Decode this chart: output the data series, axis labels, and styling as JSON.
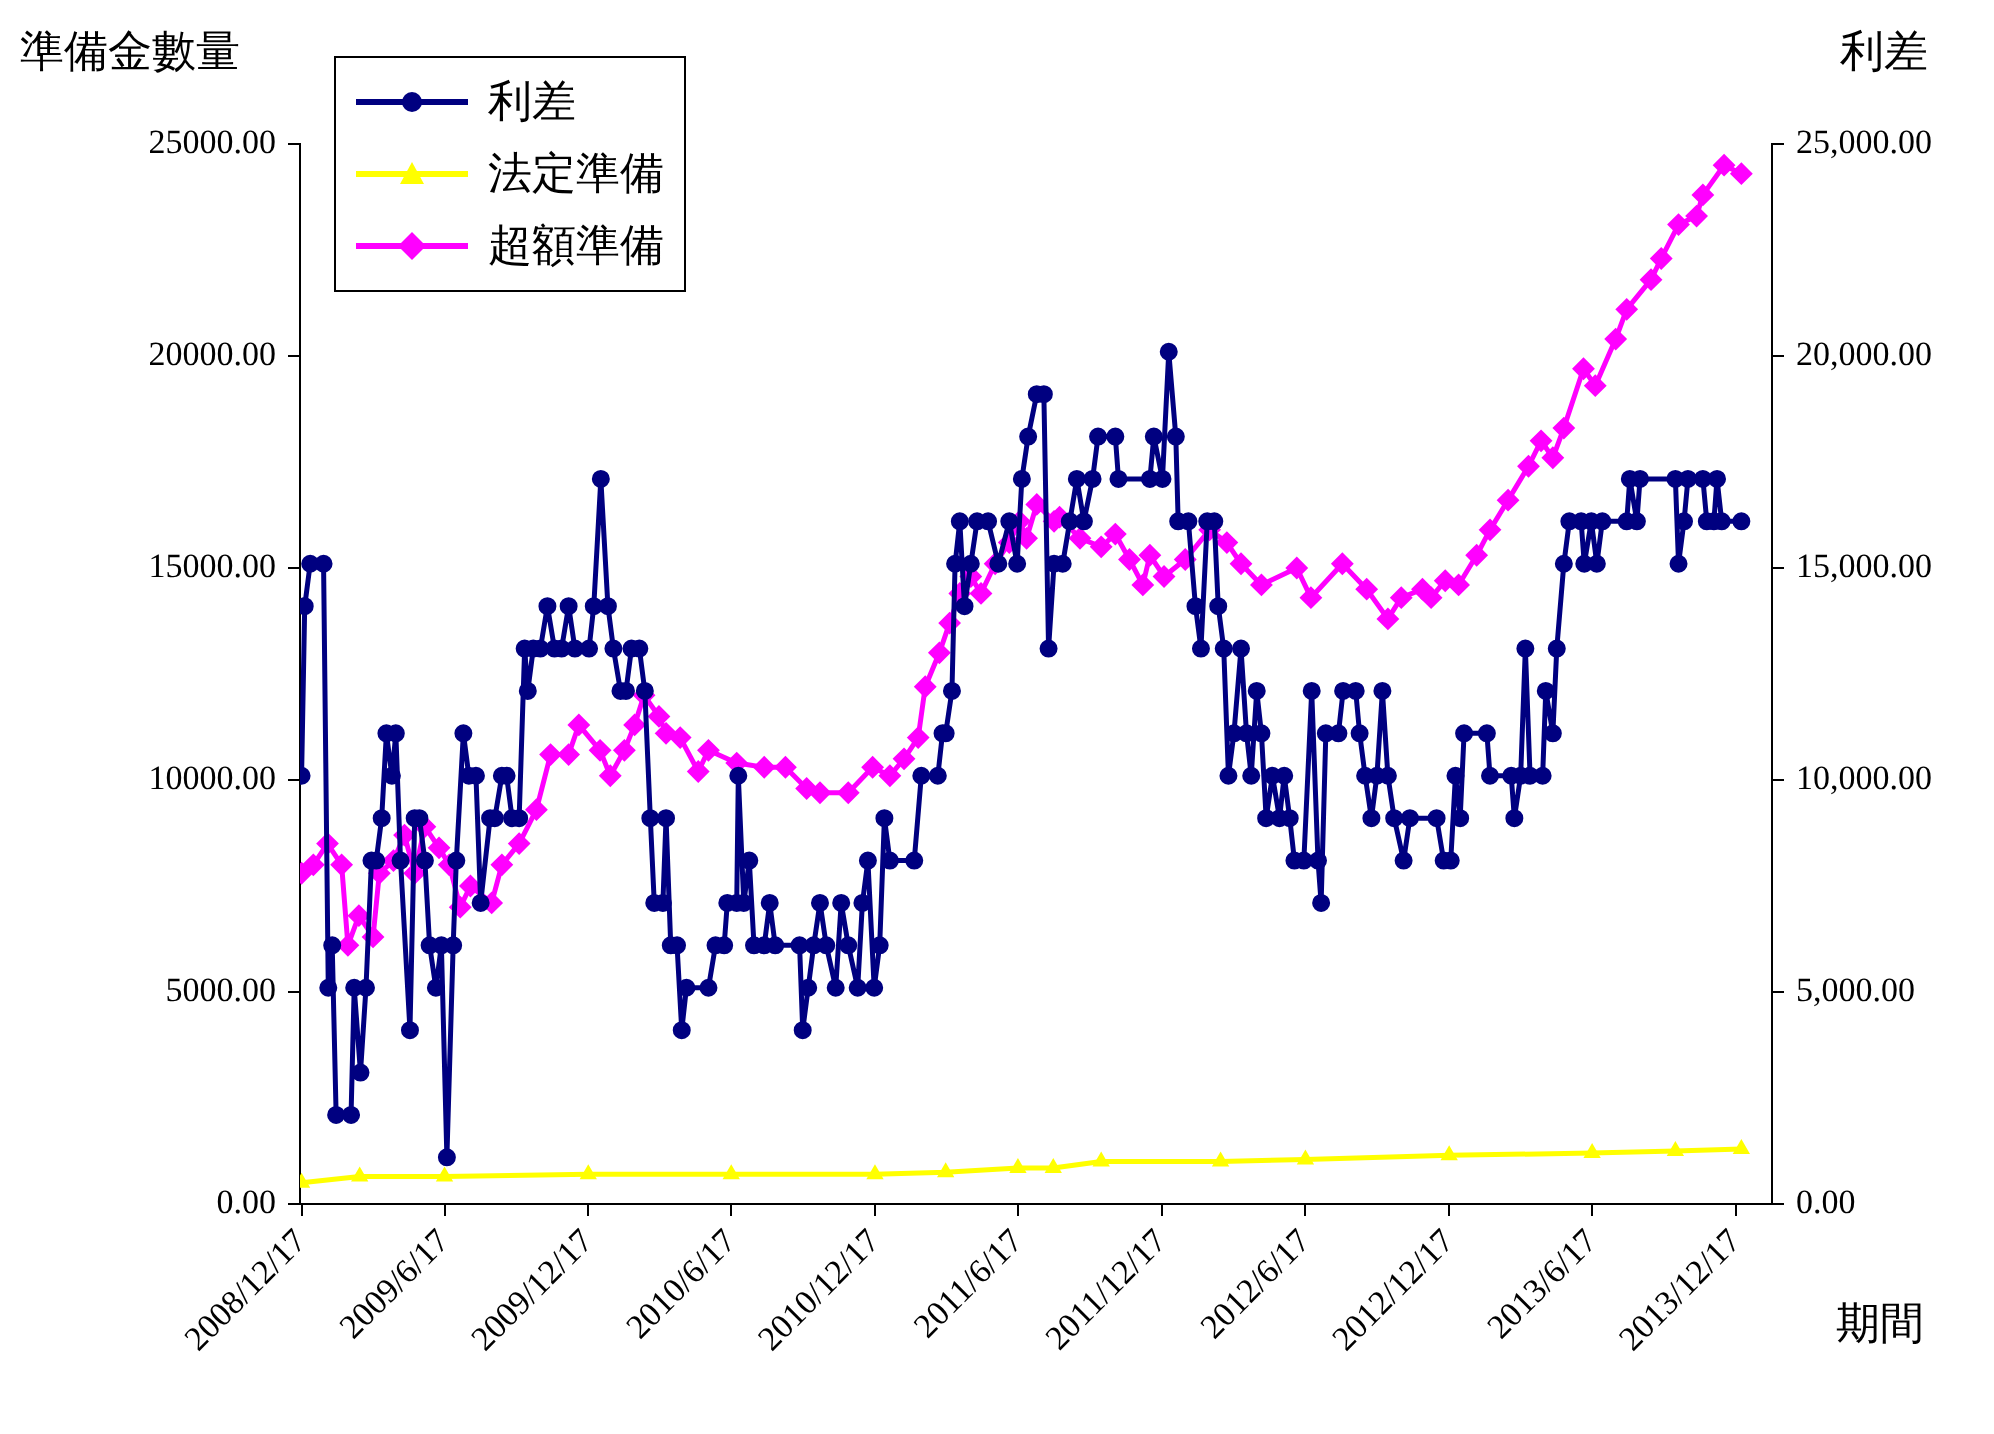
{
  "chart_data": {
    "type": "line",
    "xlabel": "期間",
    "ylabel": "準備金數量",
    "y2label": "利差",
    "xlim": [
      "2008-12-15",
      "2014-02-01"
    ],
    "xticks": [
      {
        "value": "2008-12-17",
        "label": "2008/12/17"
      },
      {
        "value": "2009-06-17",
        "label": "2009/6/17"
      },
      {
        "value": "2009-12-17",
        "label": "2009/12/17"
      },
      {
        "value": "2010-06-17",
        "label": "2010/6/17"
      },
      {
        "value": "2010-12-17",
        "label": "2010/12/17"
      },
      {
        "value": "2011-06-17",
        "label": "2011/6/17"
      },
      {
        "value": "2011-12-17",
        "label": "2011/12/17"
      },
      {
        "value": "2012-06-17",
        "label": "2012/6/17"
      },
      {
        "value": "2012-12-17",
        "label": "2012/12/17"
      },
      {
        "value": "2013-06-17",
        "label": "2013/6/17"
      },
      {
        "value": "2013-12-17",
        "label": "2013/12/17"
      }
    ],
    "ylim": [
      0,
      25000
    ],
    "yticks": [
      {
        "value": 0,
        "label": "0.00"
      },
      {
        "value": 5000,
        "label": "5000.00"
      },
      {
        "value": 10000,
        "label": "10000.00"
      },
      {
        "value": 15000,
        "label": "15000.00"
      },
      {
        "value": 20000,
        "label": "20000.00"
      },
      {
        "value": 25000,
        "label": "25000.00"
      }
    ],
    "y2lim": [
      0,
      25000
    ],
    "y2ticks": [
      {
        "value": 0,
        "label": "0.00"
      },
      {
        "value": 5000,
        "label": "5,000.00"
      },
      {
        "value": 10000,
        "label": "10,000.00"
      },
      {
        "value": 15000,
        "label": "15,000.00"
      },
      {
        "value": 20000,
        "label": "20,000.00"
      },
      {
        "value": 25000,
        "label": "25,000.00"
      }
    ],
    "grid": false,
    "legend": "top left",
    "line_style": "solid",
    "series": [
      {
        "name": "利差",
        "color": "#000080",
        "axis": "y2",
        "marker": "circle",
        "x": [
          "2008-12-17",
          "2008-12-21",
          "2008-12-28",
          "2009-01-14",
          "2009-01-20",
          "2009-01-25",
          "2009-01-30",
          "2009-02-18",
          "2009-02-22",
          "2009-03-02",
          "2009-03-09",
          "2009-03-16",
          "2009-03-22",
          "2009-03-29",
          "2009-04-04",
          "2009-04-11",
          "2009-04-16",
          "2009-04-22",
          "2009-05-04",
          "2009-05-10",
          "2009-05-16",
          "2009-05-23",
          "2009-05-29",
          "2009-06-06",
          "2009-06-13",
          "2009-06-20",
          "2009-06-28",
          "2009-07-02",
          "2009-07-11",
          "2009-07-18",
          "2009-07-27",
          "2009-08-02",
          "2009-08-14",
          "2009-08-20",
          "2009-08-29",
          "2009-09-04",
          "2009-09-11",
          "2009-09-20",
          "2009-09-27",
          "2009-10-01",
          "2009-10-08",
          "2009-10-17",
          "2009-10-26",
          "2009-11-04",
          "2009-11-13",
          "2009-11-22",
          "2009-11-30",
          "2009-12-18",
          "2009-12-24",
          "2010-01-02",
          "2010-01-11",
          "2010-01-18",
          "2010-01-27",
          "2010-02-03",
          "2010-02-10",
          "2010-02-20",
          "2010-02-27",
          "2010-03-06",
          "2010-03-11",
          "2010-03-22",
          "2010-03-26",
          "2010-04-01",
          "2010-04-09",
          "2010-04-15",
          "2010-04-21",
          "2010-05-19",
          "2010-05-28",
          "2010-06-08",
          "2010-06-12",
          "2010-06-24",
          "2010-06-26",
          "2010-07-03",
          "2010-07-10",
          "2010-07-16",
          "2010-07-29",
          "2010-08-05",
          "2010-08-12",
          "2010-09-12",
          "2010-09-16",
          "2010-09-23",
          "2010-09-30",
          "2010-10-08",
          "2010-10-16",
          "2010-10-28",
          "2010-11-04",
          "2010-11-13",
          "2010-11-25",
          "2010-12-01",
          "2010-12-08",
          "2010-12-16",
          "2010-12-23",
          "2010-12-29",
          "2011-01-05",
          "2011-02-05",
          "2011-02-14",
          "2011-03-07",
          "2011-03-13",
          "2011-03-17",
          "2011-03-25",
          "2011-03-29",
          "2011-04-04",
          "2011-04-10",
          "2011-04-18",
          "2011-04-26",
          "2011-05-10",
          "2011-05-23",
          "2011-06-06",
          "2011-06-16",
          "2011-06-22",
          "2011-06-30",
          "2011-07-11",
          "2011-07-20",
          "2011-07-26",
          "2011-08-02",
          "2011-08-13",
          "2011-08-22",
          "2011-08-31",
          "2011-09-09",
          "2011-09-20",
          "2011-09-27",
          "2011-10-19",
          "2011-10-23",
          "2011-12-02",
          "2011-12-07",
          "2011-12-18",
          "2011-12-26",
          "2012-01-04",
          "2012-01-07",
          "2012-01-20",
          "2012-01-29",
          "2012-02-05",
          "2012-02-13",
          "2012-02-22",
          "2012-02-27",
          "2012-03-05",
          "2012-03-11",
          "2012-03-18",
          "2012-03-27",
          "2012-04-03",
          "2012-04-09",
          "2012-04-16",
          "2012-04-22",
          "2012-04-28",
          "2012-05-06",
          "2012-05-15",
          "2012-05-21",
          "2012-05-28",
          "2012-06-03",
          "2012-06-15",
          "2012-06-25",
          "2012-07-03",
          "2012-07-07",
          "2012-07-13",
          "2012-07-29",
          "2012-08-04",
          "2012-08-20",
          "2012-08-25",
          "2012-09-01",
          "2012-09-09",
          "2012-09-16",
          "2012-09-23",
          "2012-09-30",
          "2012-10-08",
          "2012-10-20",
          "2012-10-28",
          "2012-12-01",
          "2012-12-10",
          "2012-12-19",
          "2012-12-25",
          "2012-12-31",
          "2013-01-05",
          "2013-02-03",
          "2013-02-07",
          "2013-03-06",
          "2013-03-10",
          "2013-03-18",
          "2013-03-24",
          "2013-03-30",
          "2013-04-15",
          "2013-04-19",
          "2013-04-28",
          "2013-05-03",
          "2013-05-12",
          "2013-05-19",
          "2013-06-03",
          "2013-06-07",
          "2013-06-16",
          "2013-06-23",
          "2013-06-30",
          "2013-07-31",
          "2013-08-04",
          "2013-08-13",
          "2013-08-17",
          "2013-10-01",
          "2013-10-05",
          "2013-10-12",
          "2013-10-17",
          "2013-11-05",
          "2013-11-10",
          "2013-11-19",
          "2013-11-23",
          "2013-11-29",
          "2013-12-24"
        ],
        "values": [
          10100,
          14100,
          15100,
          15100,
          5100,
          6100,
          2100,
          2100,
          5100,
          3100,
          5100,
          8100,
          8100,
          9100,
          11100,
          10100,
          11100,
          8100,
          4100,
          9100,
          9100,
          8100,
          6100,
          5100,
          6100,
          1100,
          6100,
          8100,
          11100,
          10100,
          10100,
          7100,
          9100,
          9100,
          10100,
          10100,
          9100,
          9100,
          13100,
          12100,
          13100,
          13100,
          14100,
          13100,
          13100,
          14100,
          13100,
          13100,
          14100,
          17100,
          14100,
          13100,
          12100,
          12100,
          13100,
          13100,
          12100,
          9100,
          7100,
          7100,
          9100,
          6100,
          6100,
          4100,
          5100,
          5100,
          6100,
          6100,
          7100,
          7100,
          10100,
          7100,
          8100,
          6100,
          6100,
          7100,
          6100,
          6100,
          4100,
          5100,
          6100,
          7100,
          6100,
          5100,
          7100,
          6100,
          5100,
          7100,
          8100,
          5100,
          6100,
          9100,
          8100,
          8100,
          10100,
          10100,
          11100,
          11100,
          12100,
          15100,
          16100,
          14100,
          15100,
          16100,
          16100,
          15100,
          16100,
          15100,
          17100,
          18100,
          19100,
          19100,
          13100,
          15100,
          15100,
          16100,
          17100,
          16100,
          17100,
          18100,
          18100,
          17100,
          17100,
          18100,
          17100,
          20100,
          18100,
          16100,
          16100,
          14100,
          13100,
          16100,
          16100,
          14100,
          13100,
          10100,
          11100,
          13100,
          11100,
          10100,
          12100,
          11100,
          9100,
          10100,
          9100,
          10100,
          9100,
          8100,
          8100,
          12100,
          8100,
          7100,
          11100,
          11100,
          12100,
          12100,
          11100,
          10100,
          9100,
          10100,
          12100,
          10100,
          9100,
          8100,
          9100,
          9100,
          8100,
          8100,
          10100,
          9100,
          11100,
          11100,
          10100,
          10100,
          9100,
          10100,
          13100,
          10100,
          10100,
          12100,
          11100,
          13100,
          15100,
          16100,
          16100,
          15100,
          16100,
          15100,
          16100,
          16100,
          17100,
          16100,
          17100,
          17100,
          15100,
          16100,
          17100,
          17100,
          16100,
          16100,
          17100,
          16100,
          16100
        ]
      },
      {
        "name": "法定準備",
        "color": "#ffff00",
        "marker": "triangle",
        "x": [
          "2008-12-17",
          "2009-03-01",
          "2009-06-17",
          "2009-12-17",
          "2010-06-17",
          "2010-12-17",
          "2011-03-17",
          "2011-06-17",
          "2011-08-01",
          "2011-10-01",
          "2012-03-01",
          "2012-06-17",
          "2012-12-17",
          "2013-06-17",
          "2013-10-01",
          "2013-12-24"
        ],
        "values": [
          500,
          650,
          650,
          700,
          700,
          700,
          750,
          850,
          850,
          1000,
          1000,
          1050,
          1150,
          1200,
          1250,
          1300
        ]
      },
      {
        "name": "超額準備",
        "color": "#ff00ff",
        "marker": "diamond",
        "x": [
          "2008-12-17",
          "2009-01-01",
          "2009-01-19",
          "2009-02-06",
          "2009-02-14",
          "2009-02-28",
          "2009-03-18",
          "2009-03-26",
          "2009-04-13",
          "2009-04-27",
          "2009-05-10",
          "2009-05-23",
          "2009-06-10",
          "2009-06-23",
          "2009-07-07",
          "2009-07-20",
          "2009-08-16",
          "2009-08-29",
          "2009-09-20",
          "2009-10-12",
          "2009-10-30",
          "2009-11-22",
          "2009-12-05",
          "2010-01-01",
          "2010-01-14",
          "2010-02-01",
          "2010-02-14",
          "2010-02-26",
          "2010-03-17",
          "2010-03-26",
          "2010-04-13",
          "2010-05-06",
          "2010-05-19",
          "2010-06-24",
          "2010-07-29",
          "2010-08-25",
          "2010-09-21",
          "2010-10-08",
          "2010-11-13",
          "2010-12-14",
          "2011-01-05",
          "2011-01-23",
          "2011-02-10",
          "2011-02-19",
          "2011-03-09",
          "2011-03-22",
          "2011-04-04",
          "2011-04-18",
          "2011-05-01",
          "2011-05-19",
          "2011-06-06",
          "2011-06-19",
          "2011-06-28",
          "2011-07-11",
          "2011-08-02",
          "2011-08-09",
          "2011-09-04",
          "2011-10-01",
          "2011-10-19",
          "2011-11-06",
          "2011-11-23",
          "2011-12-02",
          "2011-12-20",
          "2012-01-16",
          "2012-02-16",
          "2012-03-09",
          "2012-03-27",
          "2012-04-22",
          "2012-06-06",
          "2012-06-24",
          "2012-08-03",
          "2012-09-03",
          "2012-09-30",
          "2012-10-17",
          "2012-11-13",
          "2012-11-24",
          "2012-12-12",
          "2012-12-29",
          "2013-01-21",
          "2013-02-07",
          "2013-03-02",
          "2013-03-28",
          "2013-04-13",
          "2013-04-28",
          "2013-05-12",
          "2013-06-06",
          "2013-06-21",
          "2013-07-17",
          "2013-07-31",
          "2013-08-31",
          "2013-09-13",
          "2013-10-05",
          "2013-10-28",
          "2013-11-05",
          "2013-12-02",
          "2013-12-24"
        ],
        "values": [
          7800,
          8000,
          8500,
          8000,
          6100,
          6800,
          6300,
          7800,
          8100,
          8700,
          7800,
          8900,
          8400,
          8000,
          7000,
          7500,
          7100,
          8000,
          8500,
          9300,
          10600,
          10600,
          11300,
          10700,
          10100,
          10700,
          11300,
          12000,
          11500,
          11100,
          11000,
          10200,
          10700,
          10400,
          10300,
          10300,
          9800,
          9700,
          9700,
          10300,
          10100,
          10500,
          11000,
          12200,
          13000,
          13700,
          14400,
          14800,
          14400,
          15100,
          15600,
          16100,
          15700,
          16500,
          16100,
          16200,
          15700,
          15500,
          15800,
          15200,
          14600,
          15300,
          14800,
          15200,
          15900,
          15600,
          15100,
          14600,
          15000,
          14300,
          15100,
          14500,
          13800,
          14300,
          14500,
          14300,
          14700,
          14600,
          15300,
          15900,
          16600,
          17400,
          18000,
          17600,
          18300,
          19700,
          19300,
          20400,
          21100,
          21800,
          22300,
          23100,
          23300,
          23800,
          24500,
          24300
        ]
      }
    ]
  }
}
